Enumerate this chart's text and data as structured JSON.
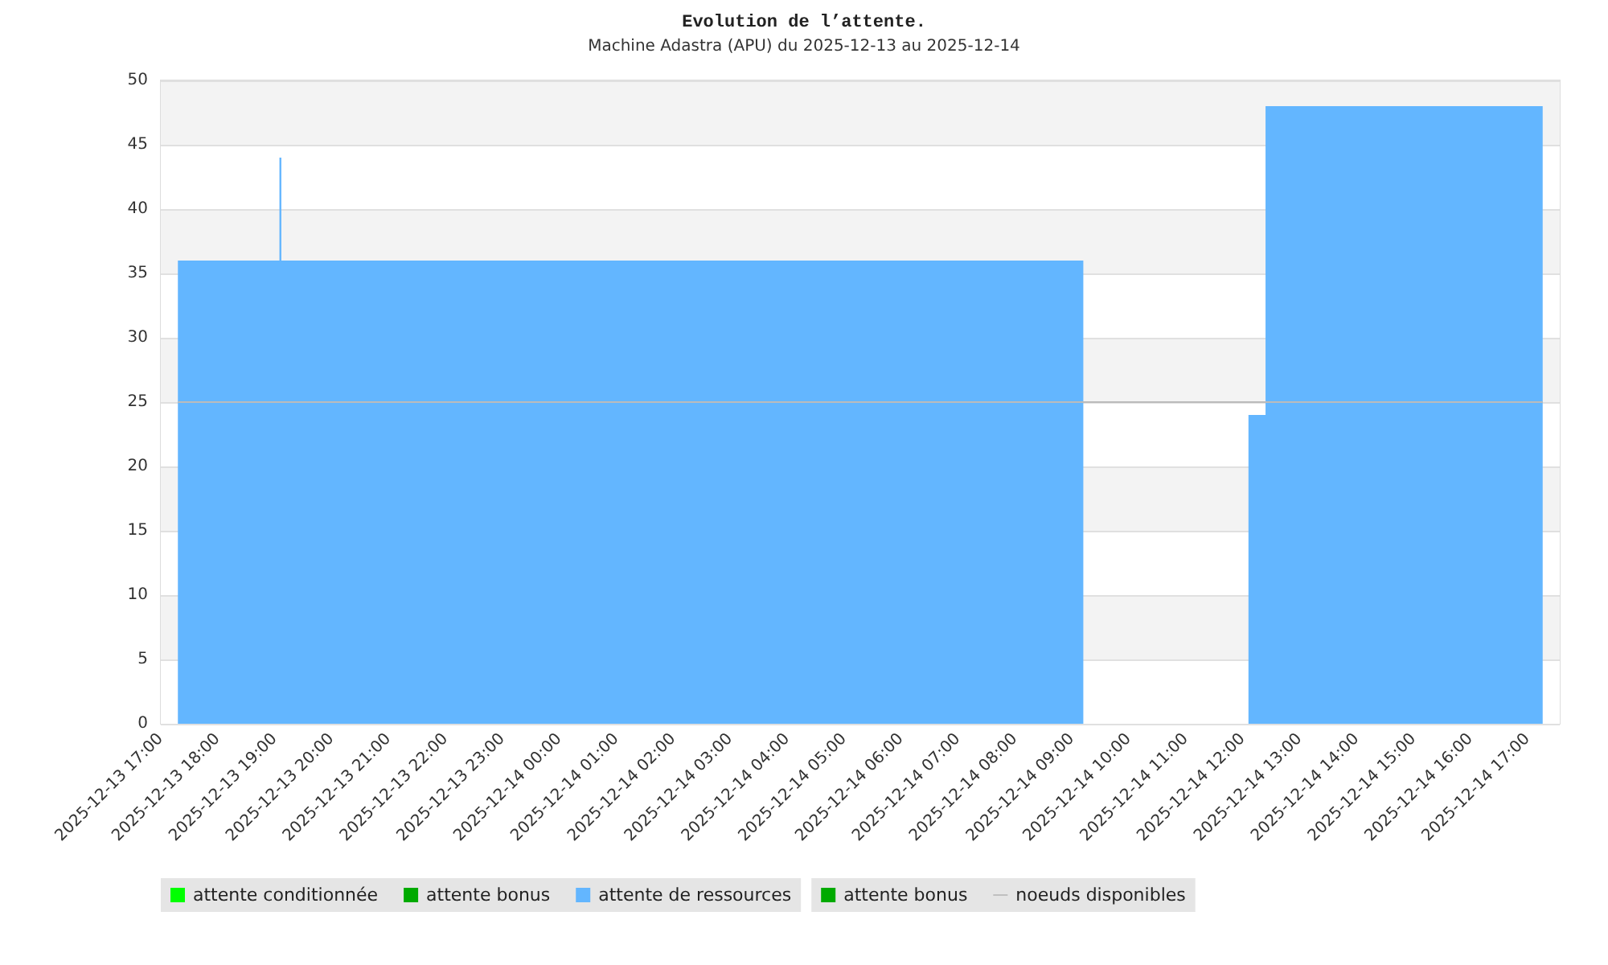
{
  "chart_data": {
    "type": "area",
    "title": "Evolution de l’attente.",
    "subtitle": "Machine Adastra (APU) du 2025-12-13 au 2025-12-14",
    "xlim": [
      "2025-12-13T17:00",
      "2025-12-14T17:34"
    ],
    "xticks": [
      {
        "value": "2025-12-13T17:00",
        "label": "2025-12-13 17:00"
      },
      {
        "value": "2025-12-13T18:00",
        "label": "2025-12-13 18:00"
      },
      {
        "value": "2025-12-13T19:00",
        "label": "2025-12-13 19:00"
      },
      {
        "value": "2025-12-13T20:00",
        "label": "2025-12-13 20:00"
      },
      {
        "value": "2025-12-13T21:00",
        "label": "2025-12-13 21:00"
      },
      {
        "value": "2025-12-13T22:00",
        "label": "2025-12-13 22:00"
      },
      {
        "value": "2025-12-13T23:00",
        "label": "2025-12-13 23:00"
      },
      {
        "value": "2025-12-14T00:00",
        "label": "2025-12-14 00:00"
      },
      {
        "value": "2025-12-14T01:00",
        "label": "2025-12-14 01:00"
      },
      {
        "value": "2025-12-14T02:00",
        "label": "2025-12-14 02:00"
      },
      {
        "value": "2025-12-14T03:00",
        "label": "2025-12-14 03:00"
      },
      {
        "value": "2025-12-14T04:00",
        "label": "2025-12-14 04:00"
      },
      {
        "value": "2025-12-14T05:00",
        "label": "2025-12-14 05:00"
      },
      {
        "value": "2025-12-14T06:00",
        "label": "2025-12-14 06:00"
      },
      {
        "value": "2025-12-14T07:00",
        "label": "2025-12-14 07:00"
      },
      {
        "value": "2025-12-14T08:00",
        "label": "2025-12-14 08:00"
      },
      {
        "value": "2025-12-14T09:00",
        "label": "2025-12-14 09:00"
      },
      {
        "value": "2025-12-14T10:00",
        "label": "2025-12-14 10:00"
      },
      {
        "value": "2025-12-14T11:00",
        "label": "2025-12-14 11:00"
      },
      {
        "value": "2025-12-14T12:00",
        "label": "2025-12-14 12:00"
      },
      {
        "value": "2025-12-14T13:00",
        "label": "2025-12-14 13:00"
      },
      {
        "value": "2025-12-14T14:00",
        "label": "2025-12-14 14:00"
      },
      {
        "value": "2025-12-14T15:00",
        "label": "2025-12-14 15:00"
      },
      {
        "value": "2025-12-14T16:00",
        "label": "2025-12-14 16:00"
      },
      {
        "value": "2025-12-14T17:00",
        "label": "2025-12-14 17:00"
      }
    ],
    "ylim": [
      0,
      50
    ],
    "yticks": [
      0,
      5,
      10,
      15,
      20,
      25,
      30,
      35,
      40,
      45,
      50
    ],
    "grid": "y",
    "legend": "bottom",
    "marker": "none",
    "series": [
      {
        "name": "attente conditionnée",
        "color": "#00ff00"
      },
      {
        "name": "attente bonus",
        "color": "#00aa00"
      },
      {
        "name": "attente de ressources",
        "color": "#63b6ff",
        "x": [
          "2025-12-13T17:18",
          "2025-12-13T19:05",
          "2025-12-13T19:05",
          "2025-12-13T19:07",
          "2025-12-13T19:07",
          "2025-12-14T09:12",
          "2025-12-14T09:13",
          "2025-12-14T12:06",
          "2025-12-14T12:24",
          "2025-12-14T12:24",
          "2025-12-14T17:16"
        ],
        "values": [
          36,
          36,
          44,
          44,
          36,
          36,
          null,
          24,
          24,
          48,
          48
        ]
      },
      {
        "name": "attente bonus",
        "color": "#00aa00"
      },
      {
        "name": "noeuds disponibles",
        "type": "line",
        "color": "#bbbbbb",
        "x": [
          "2025-12-13T17:18",
          "2025-12-14T17:16"
        ],
        "values": [
          25,
          25
        ]
      }
    ]
  }
}
